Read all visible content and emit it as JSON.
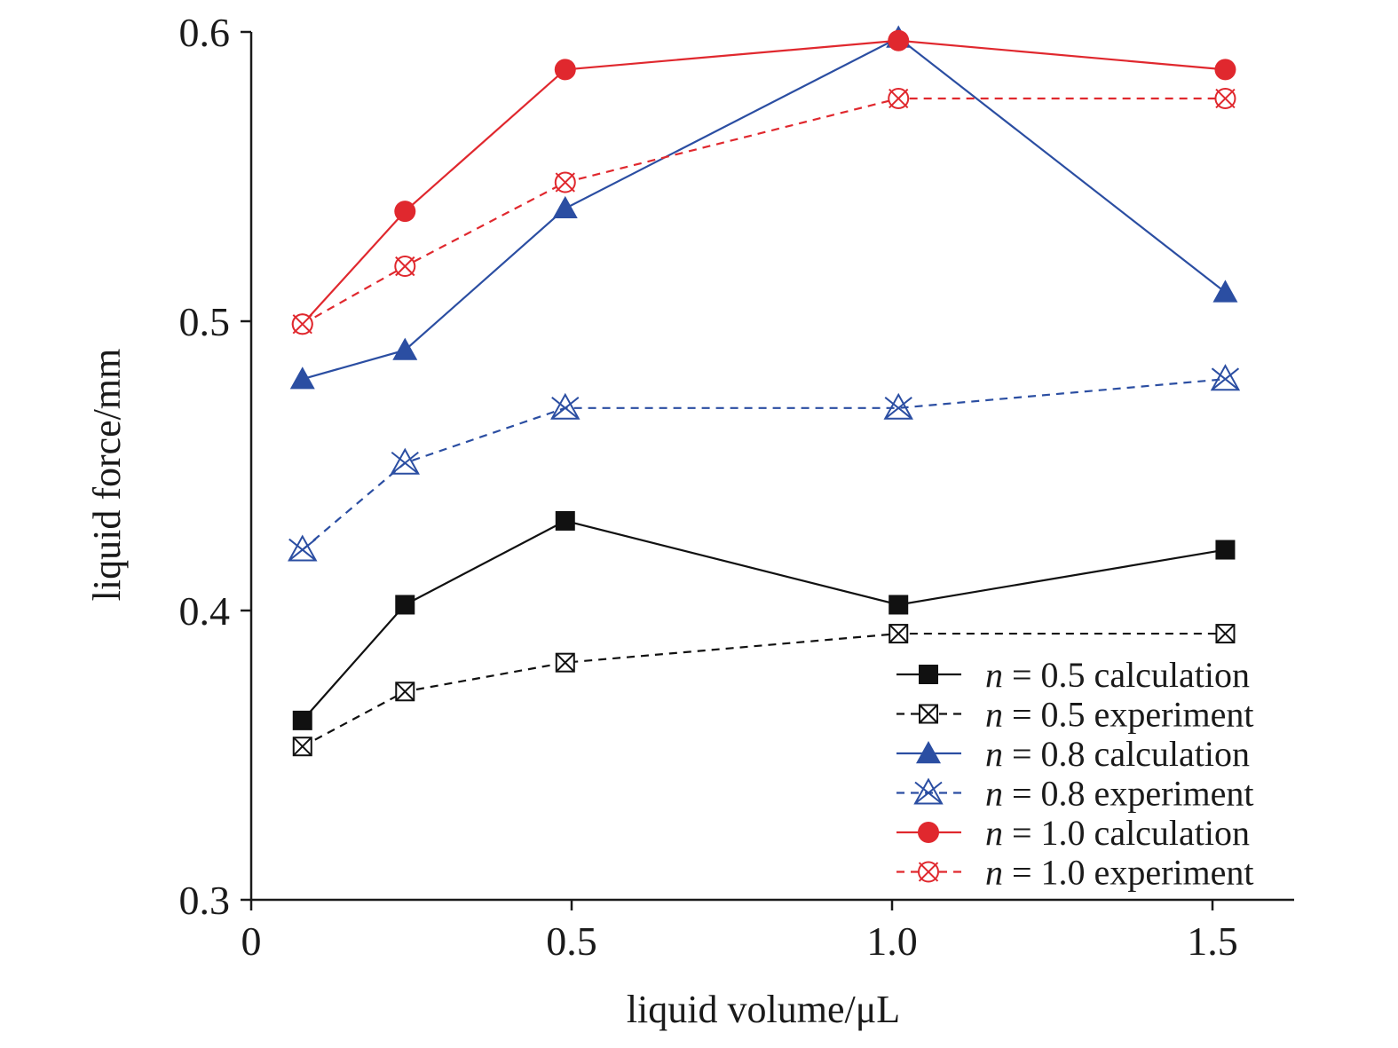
{
  "chart_data": {
    "type": "line",
    "xlabel": "liquid volume/μL",
    "ylabel": "liquid force/mm",
    "xlim": [
      0,
      1.63
    ],
    "ylim": [
      0.3,
      0.6
    ],
    "xticks": [
      0,
      0.5,
      1.0,
      1.5
    ],
    "xtick_labels": [
      "0",
      "0.5",
      "1.0",
      "1.5"
    ],
    "yticks": [
      0.3,
      0.4,
      0.5,
      0.6
    ],
    "ytick_labels": [
      "0.3",
      "0.4",
      "0.5",
      "0.6"
    ],
    "grid": false,
    "legend_position": "bottom-right",
    "x": [
      0.08,
      0.24,
      0.49,
      1.01,
      1.52
    ],
    "series": [
      {
        "name_var": "n",
        "name_rest": " = 0.5 calculation",
        "color": "#111111",
        "dashed": false,
        "marker": "square-filled",
        "values": [
          0.362,
          0.402,
          0.431,
          0.402,
          0.421
        ]
      },
      {
        "name_var": "n",
        "name_rest": " = 0.5 experiment",
        "color": "#111111",
        "dashed": true,
        "marker": "square-cross",
        "values": [
          0.353,
          0.372,
          0.382,
          0.392,
          0.392
        ]
      },
      {
        "name_var": "n",
        "name_rest": " = 0.8 calculation",
        "color": "#2b4ea2",
        "dashed": false,
        "marker": "triangle-filled",
        "values": [
          0.48,
          0.49,
          0.539,
          0.598,
          0.51
        ]
      },
      {
        "name_var": "n",
        "name_rest": " = 0.8 experiment",
        "color": "#2b4ea2",
        "dashed": true,
        "marker": "triangle-cross",
        "values": [
          0.421,
          0.451,
          0.47,
          0.47,
          0.48
        ]
      },
      {
        "name_var": "n",
        "name_rest": " = 1.0 calculation",
        "color": "#e0282e",
        "dashed": false,
        "marker": "circle-filled",
        "values": [
          0.499,
          0.538,
          0.587,
          0.597,
          0.587
        ]
      },
      {
        "name_var": "n",
        "name_rest": " = 1.0 experiment",
        "color": "#e0282e",
        "dashed": true,
        "marker": "circle-cross",
        "values": [
          0.499,
          0.519,
          0.548,
          0.577,
          0.577
        ]
      }
    ]
  }
}
